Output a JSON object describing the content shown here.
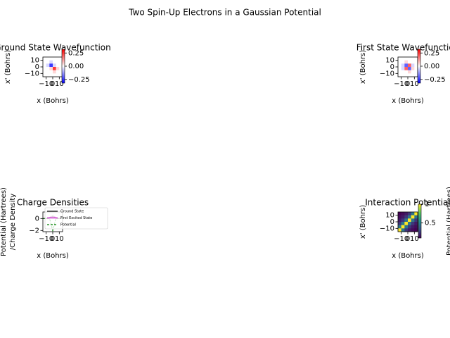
{
  "title": "Two Spin-Up Electrons in a Gaussian Potential",
  "chart_data": [
    {
      "type": "heatmap",
      "title": "Ground State Wavefunction",
      "xlabel": "x (Bohrs)",
      "ylabel": [
        "x' (Bohrs)"
      ],
      "xlim": [
        -15,
        15
      ],
      "ylim": [
        -15,
        15
      ],
      "xticks": [
        {
          "value": -10,
          "label": "−10"
        },
        0,
        10
      ],
      "yticks": [
        {
          "value": -10,
          "label": "−10"
        },
        0,
        10
      ],
      "clim": [
        -0.32,
        0.32
      ],
      "cticks": [
        {
          "value": -0.25,
          "label": "−0.25"
        },
        {
          "value": 0,
          "label": "0.00"
        },
        0.25
      ],
      "colors": [
        "#0000ff",
        "#ffffff",
        "#ff0000"
      ],
      "z": [
        [
          0,
          0,
          0,
          0,
          0,
          0
        ],
        [
          0,
          0,
          -0.05,
          0,
          0,
          0
        ],
        [
          0,
          -0.05,
          -0.25,
          -0.05,
          0,
          0
        ],
        [
          0,
          0,
          0.05,
          0.25,
          0.05,
          0
        ],
        [
          0,
          0,
          0,
          0.05,
          0,
          0
        ],
        [
          0,
          0,
          0,
          0,
          0,
          0
        ]
      ]
    },
    {
      "type": "heatmap",
      "title": "First State Wavefunction",
      "xlabel": "x (Bohrs)",
      "ylabel": [
        "x' (Bohrs)"
      ],
      "xlim": [
        -15,
        15
      ],
      "ylim": [
        -15,
        15
      ],
      "xticks": [
        {
          "value": -10,
          "label": "−10"
        },
        0,
        10
      ],
      "yticks": [
        {
          "value": -10,
          "label": "−10"
        },
        0,
        10
      ],
      "clim": [
        -0.32,
        0.32
      ],
      "cticks": [
        {
          "value": -0.25,
          "label": "−0.25"
        },
        {
          "value": 0,
          "label": "0.00"
        },
        0.25
      ],
      "colors": [
        "#0000ff",
        "#ffffff",
        "#ff0000"
      ],
      "z": [
        [
          0,
          0,
          0,
          0,
          0,
          0
        ],
        [
          0,
          0,
          0.05,
          0,
          0,
          0
        ],
        [
          0,
          -0.05,
          -0.2,
          0.2,
          -0.05,
          0
        ],
        [
          0,
          -0.05,
          0.2,
          -0.2,
          0.05,
          0
        ],
        [
          0,
          0,
          0,
          0.05,
          0,
          0
        ],
        [
          0,
          0,
          0,
          0,
          0,
          0
        ]
      ]
    },
    {
      "type": "line",
      "title": "Charge Densities",
      "xlabel": "x (Bohrs)",
      "ylabel": [
        "Potential (Hartrees)",
        "/Charge Density"
      ],
      "xlim": [
        -15,
        15
      ],
      "ylim": [
        -2.2,
        1.1
      ],
      "xticks": [
        {
          "value": -10,
          "label": "−10"
        },
        0,
        10
      ],
      "yticks": [
        {
          "value": -2,
          "label": "−2"
        },
        0
      ],
      "x": [
        -15,
        -10,
        -6,
        -4,
        -2,
        0,
        2,
        4,
        6,
        10,
        15
      ],
      "legend": "upper right",
      "series": [
        {
          "name": "Ground State",
          "color": "#000000",
          "dash": false,
          "values": [
            0,
            0,
            0.02,
            0.1,
            0.3,
            0.4,
            0.3,
            0.1,
            0.02,
            0,
            0
          ]
        },
        {
          "name": "First Excited State",
          "color": "#bf00bf",
          "dash": false,
          "values": [
            0,
            0,
            0.05,
            0.25,
            0.35,
            0.1,
            0.35,
            0.25,
            0.05,
            0,
            0
          ]
        },
        {
          "name": "Potential",
          "color": "#008000",
          "dash": true,
          "values": [
            0,
            0,
            -0.02,
            -0.27,
            -1.21,
            -2,
            -1.21,
            -0.27,
            -0.02,
            0,
            0
          ]
        }
      ]
    },
    {
      "type": "heatmap",
      "title": "Interaction Potential",
      "xlabel": "x (Bohrs)",
      "ylabel": [
        "x' (Bohrs)"
      ],
      "clabel": "Potential (Hartrees)",
      "xlim": [
        -15,
        15
      ],
      "ylim": [
        -15,
        15
      ],
      "xticks": [
        {
          "value": -10,
          "label": "−10"
        },
        0,
        10
      ],
      "yticks": [
        {
          "value": -10,
          "label": "−10"
        },
        0,
        10
      ],
      "clim": [
        0.1,
        1.0
      ],
      "cticks": [
        0.5,
        1.0
      ],
      "colors": [
        "#440154",
        "#3b528b",
        "#21918c",
        "#5ec962",
        "#fde725"
      ],
      "z": [
        [
          0.1,
          0.13,
          0.17,
          0.25,
          0.45,
          1.0
        ],
        [
          0.13,
          0.17,
          0.25,
          0.45,
          1.0,
          0.45
        ],
        [
          0.17,
          0.25,
          0.45,
          1.0,
          0.45,
          0.25
        ],
        [
          0.25,
          0.45,
          1.0,
          0.45,
          0.25,
          0.17
        ],
        [
          0.45,
          1.0,
          0.45,
          0.25,
          0.17,
          0.13
        ],
        [
          1.0,
          0.45,
          0.25,
          0.17,
          0.13,
          0.1
        ]
      ]
    }
  ]
}
